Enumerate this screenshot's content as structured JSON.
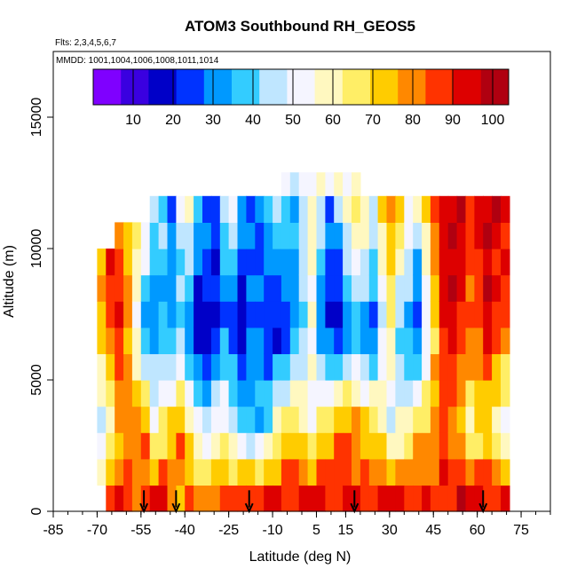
{
  "chart_data": {
    "type": "heatmap",
    "title": "ATOM3 Southbound RH_GEOS5",
    "subtitle_flights": "Flts: 2,3,4,5,6,7",
    "subtitle_dates": "MMDD: 1001,1004,1006,1008,1011,1014",
    "xlabel": "Latitude (deg N)",
    "ylabel": "Altitude (m)",
    "xlim": [
      -85,
      85
    ],
    "ylim": [
      0,
      17500
    ],
    "x_ticks": [
      -85,
      -70,
      -55,
      -40,
      -25,
      -10,
      5,
      15,
      30,
      45,
      60,
      75
    ],
    "y_ticks": [
      0,
      5000,
      10000,
      15000
    ],
    "colorbar": {
      "range": [
        0,
        104
      ],
      "ticks": [
        10,
        20,
        30,
        40,
        50,
        60,
        70,
        80,
        90,
        100
      ],
      "colors": [
        "#7f00ff",
        "#3a00e0",
        "#0000c8",
        "#0033ff",
        "#0099ff",
        "#33ccff",
        "#bfe6ff",
        "#f5f5ff",
        "#fff8c0",
        "#ffee66",
        "#ffcc00",
        "#ff8800",
        "#ff3300",
        "#dd0000",
        "#b00010"
      ]
    },
    "latitude_bins": [
      -70,
      -67,
      -64,
      -61,
      -58,
      -55,
      -52,
      -49,
      -46,
      -43,
      -40,
      -37,
      -34,
      -31,
      -28,
      -25,
      -22,
      -19,
      -16,
      -13,
      -10,
      -7,
      -4,
      -1,
      2,
      5,
      8,
      11,
      14,
      17,
      20,
      23,
      26,
      29,
      32,
      35,
      38,
      41,
      44,
      47,
      50,
      53,
      56,
      59,
      62,
      65,
      68
    ],
    "altitude_bins": [
      0,
      1000,
      2000,
      3000,
      4000,
      5000,
      6000,
      7000,
      8000,
      9000,
      10000,
      11000,
      12000
    ],
    "rh_profiles": {
      "surface_0_1000": [
        75,
        85,
        95,
        90,
        80,
        85,
        90,
        92,
        85,
        80,
        82,
        80,
        78,
        85,
        85,
        85,
        88,
        90,
        90,
        92,
        92,
        90,
        88,
        90,
        92,
        92,
        90,
        88,
        90,
        90,
        90,
        88,
        90,
        92,
        92,
        90,
        90,
        88,
        88,
        90,
        92,
        95,
        95,
        92,
        92,
        92,
        92
      ],
      "low_1000_3000": [
        40,
        55,
        70,
        80,
        85,
        80,
        60,
        65,
        75,
        80,
        65,
        50,
        45,
        55,
        60,
        50,
        40,
        40,
        35,
        45,
        60,
        70,
        75,
        65,
        55,
        70,
        75,
        80,
        85,
        80,
        75,
        70,
        65,
        50,
        55,
        60,
        70,
        75,
        80,
        85,
        80,
        70,
        60,
        65,
        70,
        55,
        50
      ],
      "mid_3000_7000": [
        75,
        85,
        90,
        80,
        50,
        30,
        25,
        35,
        30,
        40,
        25,
        15,
        15,
        20,
        30,
        20,
        15,
        25,
        30,
        20,
        15,
        20,
        30,
        40,
        55,
        30,
        20,
        15,
        25,
        35,
        30,
        25,
        45,
        60,
        40,
        30,
        20,
        45,
        70,
        90,
        95,
        90,
        80,
        85,
        95,
        90,
        85
      ],
      "upper_7000_12000": [
        85,
        90,
        80,
        65,
        70,
        60,
        45,
        40,
        30,
        50,
        60,
        40,
        30,
        25,
        40,
        55,
        35,
        30,
        25,
        35,
        50,
        40,
        35,
        45,
        60,
        45,
        30,
        40,
        60,
        70,
        65,
        55,
        70,
        80,
        75,
        60,
        55,
        70,
        85,
        95,
        100,
        95,
        90,
        95,
        100,
        95,
        90
      ]
    },
    "southbound_markers_lat": [
      -54,
      -43,
      -18,
      18,
      62
    ]
  }
}
